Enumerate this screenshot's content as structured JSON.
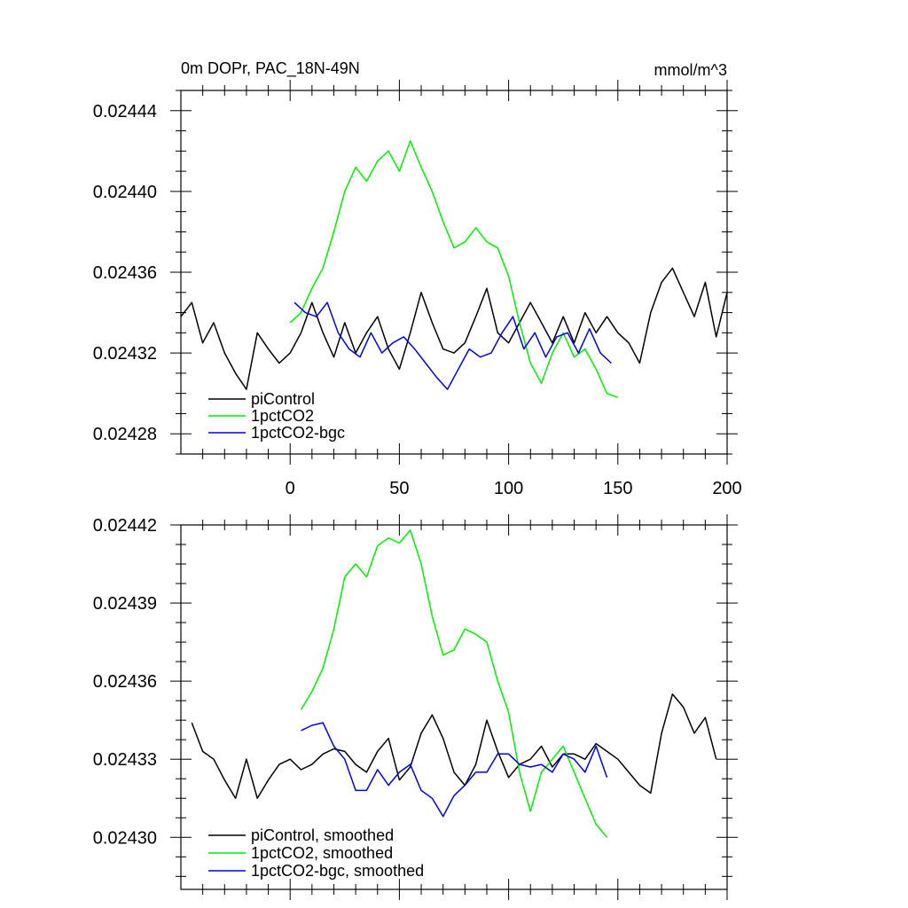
{
  "chart_data": [
    {
      "type": "line",
      "title": "0m DOPr, PAC_18N-49N",
      "units": "mmol/m^3",
      "xlim": [
        -50,
        200
      ],
      "ylim": [
        0.02427,
        0.02445
      ],
      "x_ticks": [
        0,
        50,
        100,
        150,
        200
      ],
      "y_ticks": [
        0.02428,
        0.02432,
        0.02436,
        0.0244,
        0.02444
      ],
      "y_tick_labels": [
        "0.02428",
        "0.02432",
        "0.02436",
        "0.02440",
        "0.02444"
      ],
      "legend_position": "bottom-left",
      "colors": {
        "piControl": "#000000",
        "1pctCO2": "#00ee00",
        "1pctCO2-bgc": "#0000dd"
      },
      "series": [
        {
          "name": "piControl",
          "x": [
            -50,
            -45,
            -40,
            -35,
            -30,
            -25,
            -20,
            -15,
            -10,
            -5,
            0,
            5,
            10,
            15,
            20,
            25,
            30,
            35,
            40,
            45,
            50,
            55,
            60,
            65,
            70,
            75,
            80,
            85,
            90,
            95,
            100,
            105,
            110,
            115,
            120,
            125,
            130,
            135,
            140,
            145,
            150,
            155,
            160,
            165,
            170,
            175,
            180,
            185,
            190,
            195,
            200
          ],
          "values": [
            0.024338,
            0.024345,
            0.024325,
            0.024335,
            0.02432,
            0.02431,
            0.024302,
            0.02433,
            0.024322,
            0.024315,
            0.02432,
            0.02433,
            0.024345,
            0.02433,
            0.024318,
            0.024335,
            0.02432,
            0.02433,
            0.024338,
            0.024322,
            0.024312,
            0.02433,
            0.02435,
            0.024335,
            0.024322,
            0.02432,
            0.024325,
            0.024338,
            0.024352,
            0.02433,
            0.024325,
            0.024335,
            0.024345,
            0.024335,
            0.024325,
            0.024338,
            0.024325,
            0.02434,
            0.02433,
            0.024338,
            0.02433,
            0.024325,
            0.024315,
            0.02434,
            0.024355,
            0.024362,
            0.02435,
            0.024338,
            0.024355,
            0.024328,
            0.02435
          ]
        },
        {
          "name": "1pctCO2",
          "x": [
            0,
            5,
            10,
            15,
            20,
            25,
            30,
            35,
            40,
            45,
            50,
            55,
            60,
            65,
            70,
            75,
            80,
            85,
            90,
            95,
            100,
            105,
            110,
            115,
            120,
            125,
            130,
            135,
            140,
            145,
            150
          ],
          "values": [
            0.024335,
            0.02434,
            0.024352,
            0.024362,
            0.02438,
            0.0244,
            0.024412,
            0.024405,
            0.024415,
            0.02442,
            0.02441,
            0.024425,
            0.024412,
            0.0244,
            0.024385,
            0.024372,
            0.024375,
            0.024382,
            0.024375,
            0.024372,
            0.024358,
            0.024335,
            0.024315,
            0.024305,
            0.02432,
            0.02433,
            0.024318,
            0.024322,
            0.024312,
            0.0243,
            0.024298
          ]
        },
        {
          "name": "1pctCO2-bgc",
          "x": [
            2,
            7,
            12,
            17,
            22,
            27,
            32,
            37,
            42,
            47,
            52,
            57,
            62,
            67,
            72,
            77,
            82,
            87,
            92,
            97,
            102,
            107,
            112,
            117,
            122,
            127,
            132,
            137,
            142,
            147
          ],
          "values": [
            0.024345,
            0.02434,
            0.024338,
            0.024345,
            0.02433,
            0.024322,
            0.024318,
            0.02433,
            0.02432,
            0.024325,
            0.024328,
            0.024322,
            0.024315,
            0.024308,
            0.024302,
            0.024312,
            0.024322,
            0.024318,
            0.02432,
            0.02433,
            0.024338,
            0.024322,
            0.02433,
            0.024318,
            0.024328,
            0.02433,
            0.02432,
            0.024332,
            0.02432,
            0.024315
          ]
        }
      ]
    },
    {
      "type": "line",
      "xlim": [
        -50,
        200
      ],
      "ylim": [
        0.02428,
        0.02442
      ],
      "x_ticks": [
        0,
        50,
        100,
        150,
        200
      ],
      "y_ticks": [
        0.0243,
        0.02433,
        0.02436,
        0.02439,
        0.02442
      ],
      "y_tick_labels": [
        "0.02430",
        "0.02433",
        "0.02436",
        "0.02439",
        "0.02442"
      ],
      "legend_position": "bottom-left",
      "colors": {
        "piControl, smoothed": "#000000",
        "1pctCO2, smoothed": "#00ee00",
        "1pctCO2-bgc, smoothed": "#0000dd"
      },
      "series": [
        {
          "name": "piControl, smoothed",
          "x": [
            -45,
            -40,
            -35,
            -30,
            -25,
            -20,
            -15,
            -10,
            -5,
            0,
            5,
            10,
            15,
            20,
            25,
            30,
            35,
            40,
            45,
            50,
            55,
            60,
            65,
            70,
            75,
            80,
            85,
            90,
            95,
            100,
            105,
            110,
            115,
            120,
            125,
            130,
            135,
            140,
            145,
            150,
            155,
            160,
            165,
            170,
            175,
            180,
            185,
            190,
            195
          ],
          "values": [
            0.024344,
            0.024333,
            0.02433,
            0.024322,
            0.024315,
            0.02433,
            0.024315,
            0.024322,
            0.024328,
            0.02433,
            0.024326,
            0.024328,
            0.024332,
            0.024334,
            0.024333,
            0.024328,
            0.024325,
            0.024333,
            0.024338,
            0.024322,
            0.024327,
            0.02434,
            0.024347,
            0.024338,
            0.024325,
            0.02432,
            0.024328,
            0.024345,
            0.024333,
            0.024323,
            0.024328,
            0.02433,
            0.024335,
            0.024327,
            0.024332,
            0.024332,
            0.02433,
            0.024336,
            0.024333,
            0.02433,
            0.024325,
            0.02432,
            0.024317,
            0.02434,
            0.024355,
            0.02435,
            0.02434,
            0.024346,
            0.02433
          ]
        },
        {
          "name": "1pctCO2, smoothed",
          "x": [
            5,
            10,
            15,
            20,
            25,
            30,
            35,
            40,
            45,
            50,
            55,
            60,
            65,
            70,
            75,
            80,
            85,
            90,
            95,
            100,
            105,
            110,
            115,
            120,
            125,
            130,
            135,
            140,
            145
          ],
          "values": [
            0.024349,
            0.024356,
            0.024365,
            0.02438,
            0.0244,
            0.024405,
            0.0244,
            0.024412,
            0.024415,
            0.024413,
            0.024418,
            0.024405,
            0.024385,
            0.02437,
            0.024372,
            0.02438,
            0.024378,
            0.024375,
            0.02436,
            0.024348,
            0.024325,
            0.02431,
            0.024325,
            0.02433,
            0.024335,
            0.024325,
            0.024315,
            0.024305,
            0.0243
          ]
        },
        {
          "name": "1pctCO2-bgc, smoothed",
          "x": [
            5,
            10,
            15,
            20,
            25,
            30,
            35,
            40,
            45,
            50,
            55,
            60,
            65,
            70,
            75,
            80,
            85,
            90,
            95,
            100,
            105,
            110,
            115,
            120,
            125,
            130,
            135,
            140,
            145
          ],
          "values": [
            0.024341,
            0.024343,
            0.024344,
            0.024335,
            0.02433,
            0.024318,
            0.024318,
            0.024326,
            0.02432,
            0.024325,
            0.024328,
            0.024318,
            0.024315,
            0.024308,
            0.024316,
            0.02432,
            0.024325,
            0.024325,
            0.024332,
            0.024332,
            0.024328,
            0.024327,
            0.024328,
            0.024325,
            0.024332,
            0.02433,
            0.024325,
            0.024335,
            0.024323
          ]
        }
      ]
    }
  ]
}
